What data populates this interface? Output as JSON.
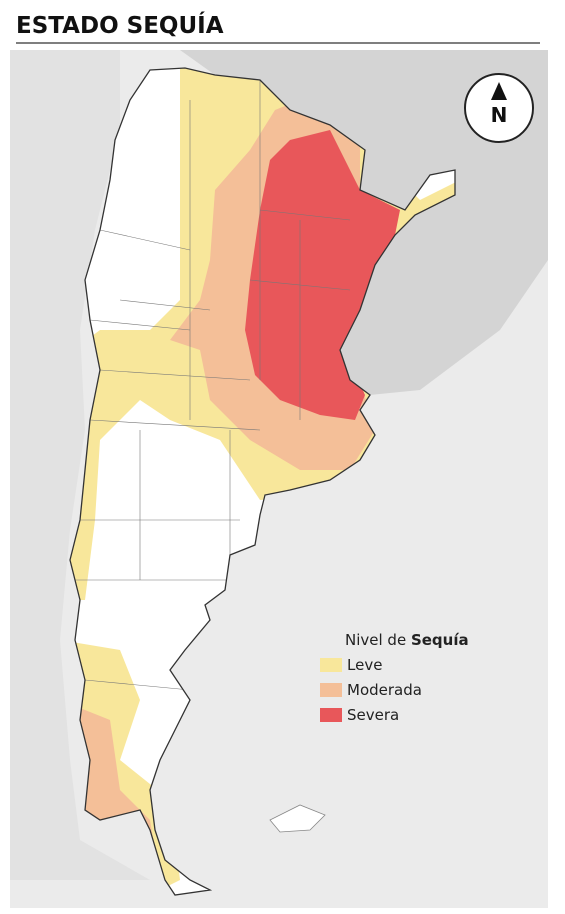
{
  "title": "ESTADO SEQUÍA",
  "north_label": "N",
  "legend": {
    "title": "Nivel de ",
    "title_bold": "Sequía",
    "items": [
      {
        "label": "Leve",
        "color": "#f8e79b"
      },
      {
        "label": "Moderada",
        "color": "#f4bf98"
      },
      {
        "label": "Severa",
        "color": "#e8575a"
      }
    ]
  }
}
